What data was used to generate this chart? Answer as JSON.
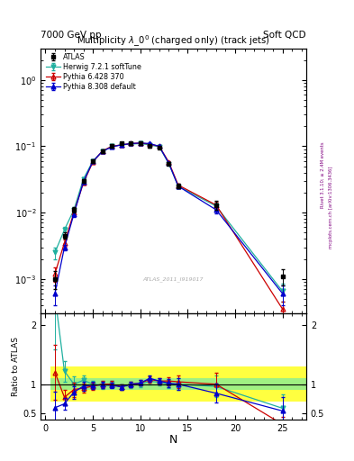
{
  "title_left": "7000 GeV pp",
  "title_right": "Soft QCD",
  "main_title": "Multiplicity $\\lambda\\_0^0$ (charged only) (track jets)",
  "watermark": "ATLAS_2011_I919017",
  "right_label": "mcplots.cern.ch [arXiv:1306.3436]",
  "rivet_label": "Rivet 3.1.10; ≥ 2.4M events",
  "xlabel": "N",
  "ylabel_ratio": "Ratio to ATLAS",
  "atlas_x": [
    1,
    2,
    3,
    4,
    5,
    6,
    7,
    8,
    9,
    10,
    11,
    12,
    13,
    14,
    18,
    25
  ],
  "atlas_y": [
    0.001,
    0.0045,
    0.011,
    0.03,
    0.06,
    0.085,
    0.1,
    0.11,
    0.11,
    0.11,
    0.1,
    0.095,
    0.055,
    0.025,
    0.013,
    0.0011
  ],
  "atlas_yerr": [
    0.0003,
    0.0005,
    0.001,
    0.002,
    0.003,
    0.004,
    0.004,
    0.004,
    0.004,
    0.004,
    0.004,
    0.004,
    0.003,
    0.002,
    0.002,
    0.0003
  ],
  "herwig_x": [
    1,
    2,
    3,
    4,
    5,
    6,
    7,
    8,
    9,
    10,
    11,
    12,
    13,
    14,
    18,
    25
  ],
  "herwig_y": [
    0.0025,
    0.0055,
    0.011,
    0.032,
    0.06,
    0.083,
    0.1,
    0.105,
    0.108,
    0.11,
    0.105,
    0.098,
    0.055,
    0.025,
    0.0125,
    0.00065
  ],
  "herwig_yerr": [
    0.0005,
    0.0005,
    0.001,
    0.0015,
    0.002,
    0.003,
    0.003,
    0.003,
    0.003,
    0.003,
    0.003,
    0.003,
    0.002,
    0.0015,
    0.0015,
    0.0002
  ],
  "pythia6_x": [
    1,
    2,
    3,
    4,
    5,
    6,
    7,
    8,
    9,
    10,
    11,
    12,
    13,
    14,
    18,
    25
  ],
  "pythia6_y": [
    0.0012,
    0.0035,
    0.01,
    0.028,
    0.058,
    0.085,
    0.1,
    0.105,
    0.11,
    0.112,
    0.108,
    0.1,
    0.058,
    0.026,
    0.013,
    0.00035
  ],
  "pythia6_yerr": [
    0.0003,
    0.0004,
    0.001,
    0.0015,
    0.002,
    0.003,
    0.003,
    0.003,
    0.003,
    0.003,
    0.003,
    0.003,
    0.002,
    0.0015,
    0.0015,
    0.0001
  ],
  "pythia8_x": [
    1,
    2,
    3,
    4,
    5,
    6,
    7,
    8,
    9,
    10,
    11,
    12,
    13,
    14,
    18,
    25
  ],
  "pythia8_y": [
    0.0006,
    0.003,
    0.0095,
    0.029,
    0.059,
    0.084,
    0.098,
    0.105,
    0.11,
    0.112,
    0.11,
    0.1,
    0.056,
    0.025,
    0.011,
    0.0006
  ],
  "pythia8_yerr": [
    0.0002,
    0.0003,
    0.0008,
    0.0015,
    0.002,
    0.003,
    0.003,
    0.003,
    0.003,
    0.003,
    0.003,
    0.003,
    0.002,
    0.0015,
    0.0012,
    0.0002
  ],
  "atlas_color": "#000000",
  "herwig_color": "#20b0a0",
  "pythia6_color": "#cc0000",
  "pythia8_color": "#0000cc",
  "ylim_main": [
    0.0003,
    3.0
  ],
  "ylim_ratio": [
    0.4,
    2.2
  ],
  "band_yellow": 0.3,
  "band_green": 0.1,
  "band_x": [
    0.5,
    1.5,
    2.5,
    3.5,
    4.5,
    5.5,
    6.5,
    7.5,
    8.5,
    9.5,
    10.5,
    11.5,
    12.5,
    13.5,
    15.5,
    21.5
  ],
  "band_w": [
    1,
    1,
    1,
    1,
    1,
    1,
    1,
    1,
    1,
    1,
    1,
    1,
    1,
    2,
    6,
    7
  ],
  "xlim": [
    -0.5,
    27.5
  ]
}
